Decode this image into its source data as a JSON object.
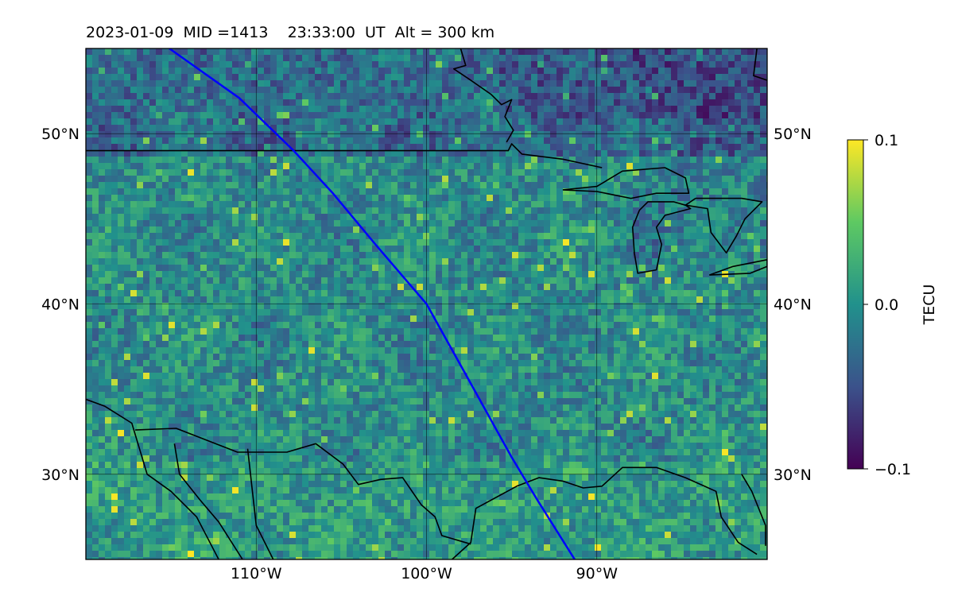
{
  "title": "2023-01-09  MID =1413    23:33:00  UT  Alt = 300 km",
  "map": {
    "lon_range": [
      -120,
      -80
    ],
    "lat_range": [
      25,
      55
    ],
    "grid_lons": [
      -110,
      -100,
      -90
    ],
    "grid_lats": [
      30,
      40,
      50
    ],
    "lon_tick_labels": [
      "110°W",
      "100°W",
      "90°W"
    ],
    "lat_tick_labels": [
      "30°N",
      "40°N",
      "50°N"
    ],
    "track": {
      "color": "#0000ff",
      "points": [
        [
          -115.1,
          55.0
        ],
        [
          -111.0,
          52.1
        ],
        [
          -107.8,
          49.0
        ],
        [
          -105.5,
          46.5
        ],
        [
          -103.0,
          43.5
        ],
        [
          -100.0,
          40.0
        ],
        [
          -97.5,
          35.5
        ],
        [
          -95.0,
          31.0
        ],
        [
          -93.5,
          28.5
        ],
        [
          -91.3,
          25.0
        ]
      ]
    },
    "coastlines": [
      [
        [
          -120,
          34.4
        ],
        [
          -118.9,
          34.0
        ],
        [
          -117.3,
          33.0
        ],
        [
          -116.4,
          30.0
        ],
        [
          -115.0,
          29.0
        ],
        [
          -113.5,
          27.5
        ],
        [
          -112.2,
          25.0
        ]
      ],
      [
        [
          -114.8,
          31.8
        ],
        [
          -114.5,
          30.0
        ],
        [
          -113.3,
          28.5
        ],
        [
          -112.2,
          27.2
        ],
        [
          -110.8,
          25.0
        ]
      ],
      [
        [
          -98.0,
          55.0
        ],
        [
          -97.7,
          54.0
        ],
        [
          -98.4,
          53.8
        ],
        [
          -97.5,
          53.2
        ],
        [
          -96.2,
          52.3
        ],
        [
          -95.6,
          51.7
        ],
        [
          -95.0,
          52.0
        ],
        [
          -95.4,
          51.0
        ],
        [
          -94.9,
          50.2
        ],
        [
          -95.3,
          49.5
        ]
      ],
      [
        [
          -80.6,
          55.0
        ],
        [
          -80.8,
          53.4
        ],
        [
          -79.6,
          53.0
        ],
        [
          -80.0,
          52.6
        ]
      ],
      [
        [
          -98.5,
          25.0
        ],
        [
          -97.4,
          26.0
        ],
        [
          -97.1,
          28.0
        ],
        [
          -94.7,
          29.3
        ],
        [
          -93.4,
          29.8
        ],
        [
          -92.0,
          29.6
        ],
        [
          -90.8,
          29.2
        ],
        [
          -89.7,
          29.3
        ],
        [
          -88.5,
          30.4
        ],
        [
          -86.5,
          30.4
        ],
        [
          -84.8,
          29.8
        ],
        [
          -83.0,
          29.0
        ],
        [
          -82.7,
          27.5
        ],
        [
          -81.7,
          26.0
        ],
        [
          -80.6,
          25.3
        ]
      ],
      [
        [
          -81.5,
          30.0
        ],
        [
          -80.9,
          29.0
        ],
        [
          -80.1,
          27.0
        ],
        [
          -80.1,
          25.8
        ]
      ]
    ],
    "borders": [
      [
        [
          -120,
          49.0
        ],
        [
          -95.2,
          49.0
        ],
        [
          -95.0,
          49.4
        ],
        [
          -94.4,
          48.8
        ],
        [
          -92.0,
          48.5
        ],
        [
          -89.7,
          48.0
        ]
      ],
      [
        [
          -117.1,
          32.6
        ],
        [
          -114.7,
          32.7
        ],
        [
          -111.1,
          31.3
        ],
        [
          -108.2,
          31.3
        ],
        [
          -106.5,
          31.8
        ],
        [
          -104.9,
          30.6
        ],
        [
          -104.0,
          29.4
        ],
        [
          -102.7,
          29.7
        ],
        [
          -101.4,
          29.8
        ],
        [
          -100.3,
          28.2
        ],
        [
          -99.5,
          27.5
        ],
        [
          -99.1,
          26.4
        ],
        [
          -97.4,
          25.9
        ]
      ],
      [
        [
          -110.5,
          31.5
        ],
        [
          -110.0,
          27.0
        ],
        [
          -109.0,
          25.0
        ]
      ]
    ],
    "lakes": [
      [
        [
          -92.0,
          46.7
        ],
        [
          -90.0,
          46.9
        ],
        [
          -88.5,
          47.8
        ],
        [
          -86.0,
          48.0
        ],
        [
          -84.8,
          47.4
        ],
        [
          -84.6,
          46.5
        ],
        [
          -86.5,
          46.5
        ],
        [
          -88.0,
          46.2
        ],
        [
          -90.0,
          46.6
        ],
        [
          -92.0,
          46.7
        ]
      ],
      [
        [
          -87.5,
          45.5
        ],
        [
          -87.0,
          46.0
        ],
        [
          -85.5,
          46.0
        ],
        [
          -84.8,
          45.8
        ],
        [
          -84.5,
          45.6
        ],
        [
          -86.0,
          45.2
        ],
        [
          -86.5,
          44.5
        ],
        [
          -86.2,
          43.5
        ],
        [
          -86.5,
          42.0
        ],
        [
          -87.6,
          41.8
        ],
        [
          -87.8,
          43.0
        ],
        [
          -87.9,
          44.5
        ],
        [
          -87.5,
          45.5
        ]
      ],
      [
        [
          -84.2,
          46.2
        ],
        [
          -84.8,
          45.8
        ],
        [
          -83.5,
          45.6
        ],
        [
          -83.3,
          44.2
        ],
        [
          -82.4,
          43.0
        ],
        [
          -81.8,
          44.0
        ],
        [
          -81.3,
          45.0
        ],
        [
          -80.3,
          46.0
        ],
        [
          -81.5,
          46.2
        ],
        [
          -84.2,
          46.2
        ]
      ],
      [
        [
          -83.4,
          41.7
        ],
        [
          -81.0,
          41.8
        ],
        [
          -80.0,
          42.2
        ],
        [
          -80.0,
          42.6
        ],
        [
          -82.0,
          42.2
        ],
        [
          -83.4,
          41.7
        ]
      ]
    ]
  },
  "colorbar": {
    "label": "TECU",
    "vmin": -0.1,
    "vmax": 0.1,
    "ticks": [
      0.1,
      0.0,
      -0.1
    ],
    "tick_labels": [
      "0.1",
      "0.0",
      "−0.1"
    ],
    "colormap": "viridis"
  }
}
